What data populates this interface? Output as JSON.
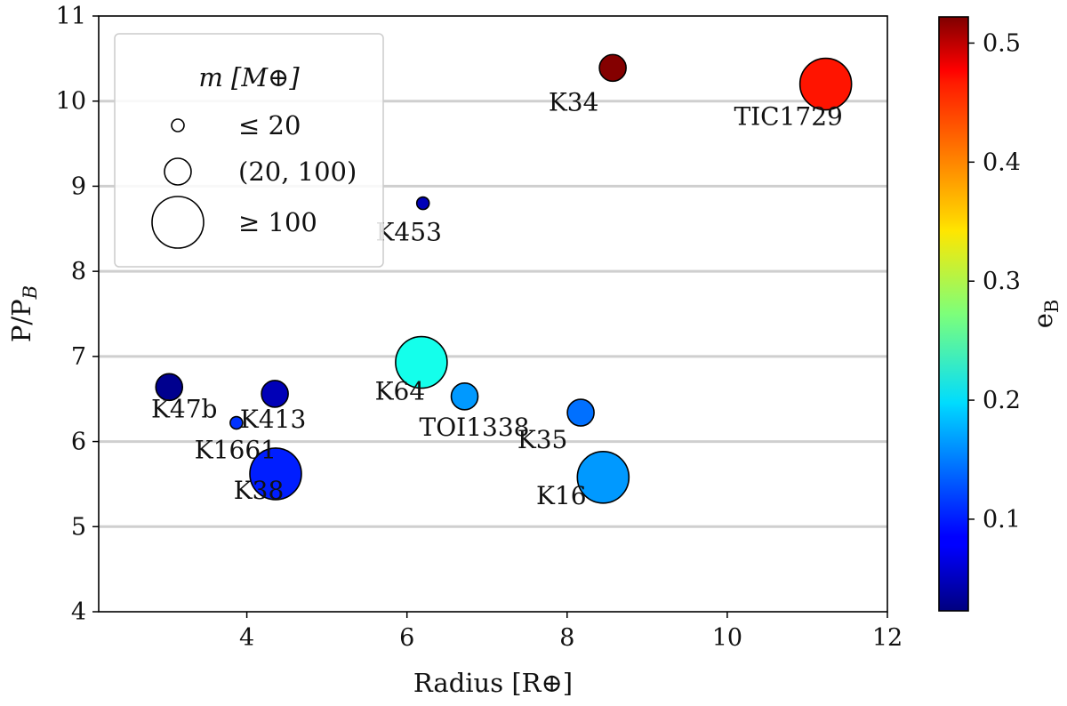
{
  "chart_data": {
    "type": "scatter",
    "xlabel": "Radius [R⊕]",
    "ylabel": "P/P",
    "ylabel_sub": "B",
    "xlim": [
      2.15,
      12
    ],
    "ylim": [
      4,
      11
    ],
    "xticks": [
      4,
      6,
      8,
      10,
      12
    ],
    "yticks": [
      4,
      5,
      6,
      7,
      8,
      9,
      10,
      11
    ],
    "grid": "horizontal",
    "points": [
      {
        "name": "K34",
        "x": 8.57,
        "y": 10.39,
        "e": 0.52,
        "size_class": "(20, 100)"
      },
      {
        "name": "TIC1729",
        "x": 11.23,
        "y": 10.2,
        "e": 0.45,
        "size_class": "≥ 100"
      },
      {
        "name": "K453",
        "x": 6.2,
        "y": 8.8,
        "e": 0.05,
        "size_class": "≤ 20"
      },
      {
        "name": "K64",
        "x": 6.18,
        "y": 6.93,
        "e": 0.22,
        "size_class": "≥ 100"
      },
      {
        "name": "K47b",
        "x": 3.03,
        "y": 6.64,
        "e": 0.03,
        "size_class": "(20, 100)"
      },
      {
        "name": "K413",
        "x": 4.35,
        "y": 6.56,
        "e": 0.05,
        "size_class": "(20, 100)"
      },
      {
        "name": "TOI1338",
        "x": 6.72,
        "y": 6.53,
        "e": 0.16,
        "size_class": "(20, 100)"
      },
      {
        "name": "K35",
        "x": 8.17,
        "y": 6.34,
        "e": 0.14,
        "size_class": "(20, 100)"
      },
      {
        "name": "K1661",
        "x": 3.87,
        "y": 6.22,
        "e": 0.11,
        "size_class": "≤ 20"
      },
      {
        "name": "K38",
        "x": 4.36,
        "y": 5.62,
        "e": 0.1,
        "size_class": "≥ 100"
      },
      {
        "name": "K16",
        "x": 8.45,
        "y": 5.58,
        "e": 0.16,
        "size_class": "≥ 100"
      }
    ],
    "legend": {
      "title": "m [M⊕]",
      "position": "upper-left",
      "entries": [
        {
          "label": "≤ 20",
          "size_class": "≤ 20"
        },
        {
          "label": "(20, 100)",
          "size_class": "(20, 100)"
        },
        {
          "label": "≥ 100",
          "size_class": "≥ 100"
        }
      ]
    },
    "colorbar": {
      "label": "e",
      "label_sub": "B",
      "cmap": "jet",
      "range": [
        0.023,
        0.522
      ],
      "ticks": [
        0.1,
        0.2,
        0.3,
        0.4,
        0.5
      ],
      "tick_labels": [
        "0.1",
        "0.2",
        "0.3",
        "0.4",
        "0.5"
      ]
    }
  }
}
